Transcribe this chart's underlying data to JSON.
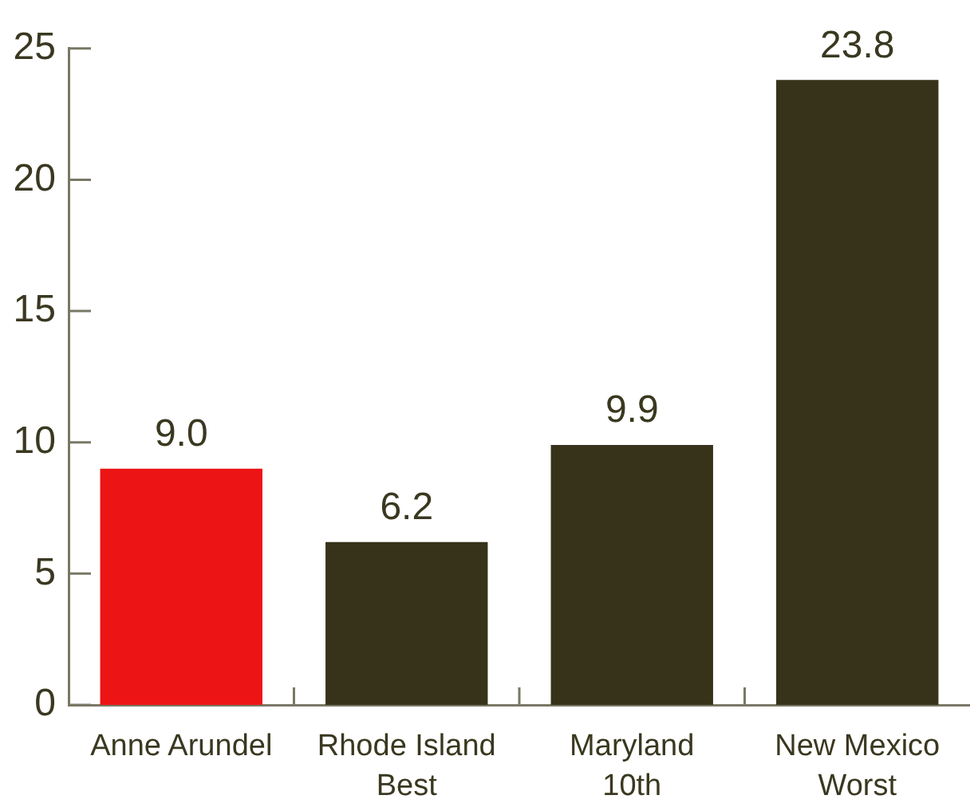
{
  "chart_data": {
    "type": "bar",
    "categories": [
      "Anne Arundel",
      "Rhode Island\nBest",
      "Maryland\n10th",
      "New Mexico\nWorst"
    ],
    "values": [
      9.0,
      6.2,
      9.9,
      23.8
    ],
    "colors": [
      "#ec1414",
      "#36331a",
      "#36331a",
      "#36331a"
    ],
    "value_labels": [
      "9.0",
      "6.2",
      "9.9",
      "23.8"
    ],
    "ylim": [
      0,
      25
    ],
    "yticks": [
      0,
      5,
      10,
      15,
      20,
      25
    ]
  }
}
